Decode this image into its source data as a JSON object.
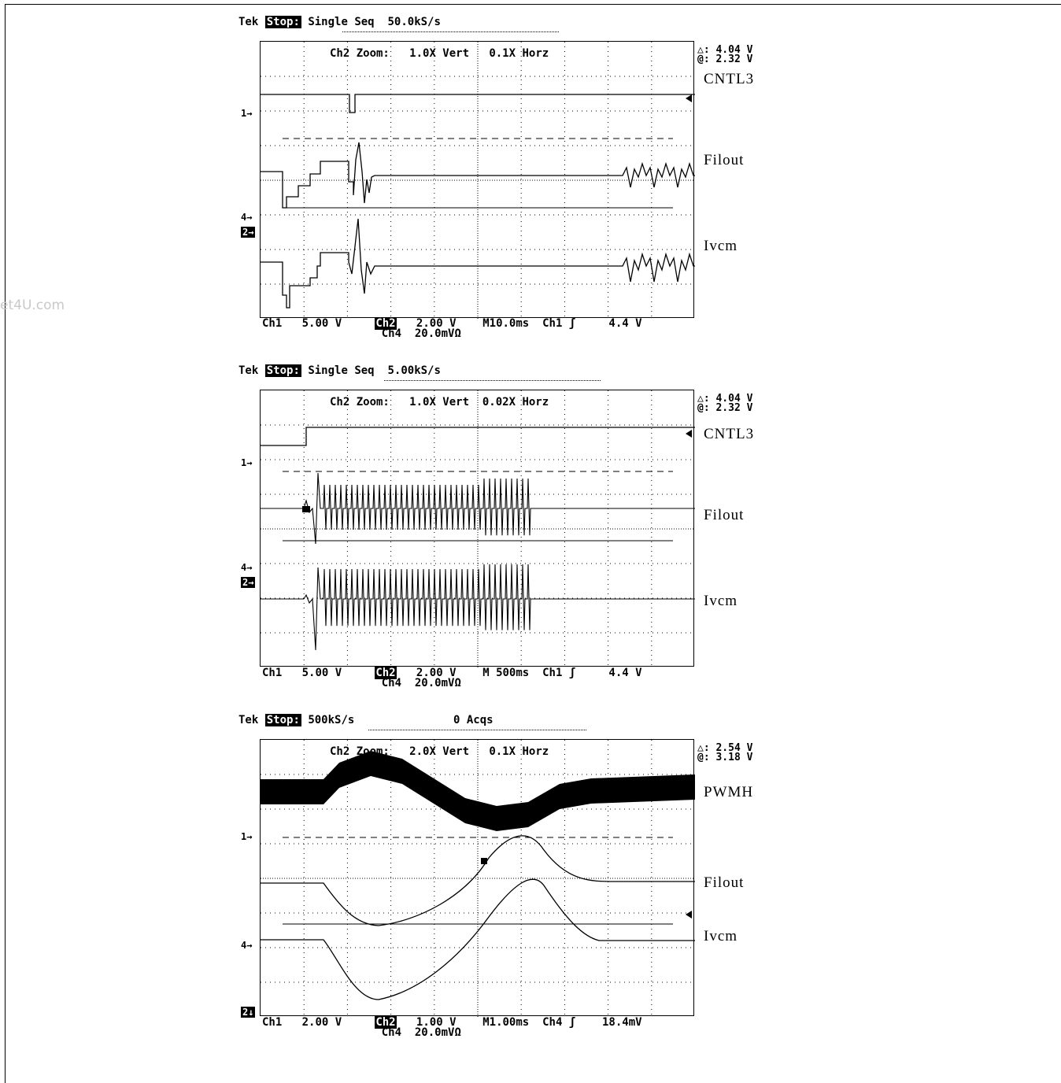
{
  "watermark": "et4U.com",
  "scopes": [
    {
      "header": {
        "brand": "Tek",
        "status": "Stop:",
        "mode": "Single Seq",
        "rate": "50.0kS/s",
        "acqs": ""
      },
      "zoom": {
        "text": "Ch2 Zoom:",
        "vert": "1.0X Vert",
        "horz": "0.1X Horz"
      },
      "meas": {
        "delta": "△: 4.04 V",
        "at": "@: 2.32 V"
      },
      "labels": [
        "CNTL3",
        "Filout",
        "Ivcm"
      ],
      "markers": {
        "m1": "1→",
        "m4": "4→",
        "m2": "2→"
      },
      "footer": {
        "ch1": "Ch1",
        "ch1_scale": "5.00 V",
        "ch2": "Ch2",
        "ch2_scale": "2.00 V",
        "time": "M10.0ms",
        "trig_src": "Ch1",
        "trig_sym": "ʃ",
        "trig_level": "4.4 V",
        "ch4": "Ch4",
        "ch4_scale": "20.0mVΩ"
      }
    },
    {
      "header": {
        "brand": "Tek",
        "status": "Stop:",
        "mode": "Single Seq",
        "rate": "5.00kS/s",
        "acqs": ""
      },
      "zoom": {
        "text": "Ch2 Zoom:",
        "vert": "1.0X Vert",
        "horz": "0.02X Horz"
      },
      "meas": {
        "delta": "△: 4.04 V",
        "at": "@: 2.32 V"
      },
      "labels": [
        "CNTL3",
        "Filout",
        "Ivcm"
      ],
      "markers": {
        "m1": "1→",
        "m4": "4→",
        "m2": "2→"
      },
      "footer": {
        "ch1": "Ch1",
        "ch1_scale": "5.00 V",
        "ch2": "Ch2",
        "ch2_scale": "2.00 V",
        "time": "M 500ms",
        "trig_src": "Ch1",
        "trig_sym": "ʃ",
        "trig_level": "4.4 V",
        "ch4": "Ch4",
        "ch4_scale": "20.0mVΩ"
      }
    },
    {
      "header": {
        "brand": "Tek",
        "status": "Stop:",
        "mode": "",
        "rate": "500kS/s",
        "acqs": "0 Acqs"
      },
      "zoom": {
        "text": "Ch2 Zoom:",
        "vert": "2.0X Vert",
        "horz": "0.1X Horz"
      },
      "meas": {
        "delta": "△: 2.54 V",
        "at": "@: 3.18 V"
      },
      "labels": [
        "PWMH",
        "Filout",
        "Ivcm"
      ],
      "markers": {
        "m1": "1→",
        "m4": "4→",
        "m2": "2↓"
      },
      "footer": {
        "ch1": "Ch1",
        "ch1_scale": "2.00 V",
        "ch2": "Ch2",
        "ch2_scale": "1.00 V",
        "time": "M1.00ms",
        "trig_src": "Ch4",
        "trig_sym": "ʃ",
        "trig_level": "18.4mV",
        "ch4": "Ch4",
        "ch4_scale": "20.0mVΩ"
      }
    }
  ],
  "chart_data": [
    {
      "type": "line",
      "title": "",
      "grid": true,
      "x": {
        "divisions": 10,
        "unit": "ms",
        "per_div": 10
      },
      "series": [
        {
          "name": "CNTL3",
          "y_div": [
            0.0,
            0.0,
            0.0,
            0.0,
            0.0,
            0.0,
            0.0,
            0.0,
            0.0,
            0.0,
            0.0
          ]
        },
        {
          "name": "Filout",
          "y_div": [
            0.0,
            -1.2,
            -0.4,
            0.0,
            0.0,
            0.0,
            0.0,
            0.0,
            0.0,
            0.0,
            0.0
          ]
        },
        {
          "name": "Ivcm",
          "y_div": [
            0.0,
            -1.2,
            -0.4,
            0.0,
            0.0,
            0.0,
            0.0,
            0.0,
            0.0,
            0.0,
            0.0
          ]
        }
      ]
    },
    {
      "type": "line",
      "title": "",
      "grid": true,
      "x": {
        "divisions": 10,
        "unit": "ms",
        "per_div": 500
      },
      "series": [
        {
          "name": "CNTL3",
          "y_div": [
            -0.5,
            -0.5,
            0.0,
            0.0,
            0.0,
            0.0,
            0.0,
            0.0,
            0.0,
            0.0,
            0.0
          ]
        },
        {
          "name": "Filout",
          "y_div": [
            0,
            0,
            0,
            0,
            0,
            0,
            0,
            0,
            0,
            0,
            0
          ]
        },
        {
          "name": "Ivcm",
          "y_div": [
            0,
            0,
            0,
            0,
            0,
            0,
            0,
            0,
            0,
            0,
            0
          ]
        }
      ]
    },
    {
      "type": "line",
      "title": "",
      "grid": true,
      "x": {
        "divisions": 10,
        "unit": "ms",
        "per_div": 1
      },
      "series": [
        {
          "name": "PWMH",
          "y_div": [
            0.0,
            0.0,
            0.6,
            0.9,
            0.6,
            0.0,
            -0.8,
            -0.7,
            -0.2,
            -0.1,
            0.0
          ]
        },
        {
          "name": "Filout",
          "y_div": [
            0.0,
            0.0,
            -1.0,
            -1.1,
            -0.7,
            0.0,
            0.5,
            0.9,
            0.1,
            0.0,
            0.0
          ]
        },
        {
          "name": "Ivcm",
          "y_div": [
            0.0,
            0.0,
            -1.4,
            -1.6,
            -1.0,
            0.0,
            0.5,
            1.0,
            0.0,
            0.1,
            0.0
          ]
        }
      ]
    }
  ]
}
